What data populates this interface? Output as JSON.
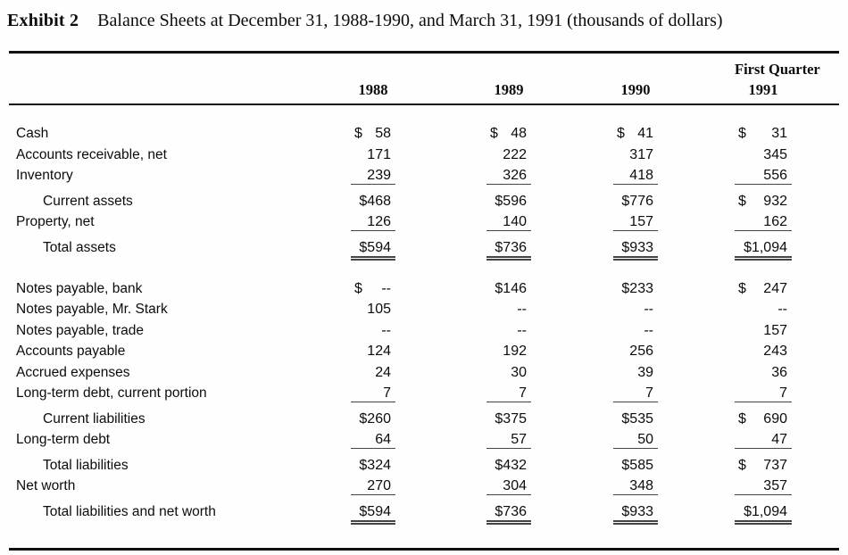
{
  "title": {
    "exhibit_label": "Exhibit 2",
    "description": "Balance Sheets at December 31, 1988-1990, and March 31, 1991 (thousands of dollars)"
  },
  "colors": {
    "text": "#0c0c0c",
    "rule": "#111111",
    "underline": "#454545",
    "background": "#fefefe"
  },
  "table": {
    "units": "thousands of dollars",
    "col_headers": {
      "top_label": "First Quarter",
      "years": [
        "1988",
        "1989",
        "1990",
        "1991"
      ]
    },
    "rows": [
      {
        "label": "Cash",
        "indent": false,
        "gap": false,
        "rule": "none",
        "cells": [
          [
            "$",
            "58"
          ],
          [
            "$",
            "48"
          ],
          [
            "$",
            "41"
          ],
          [
            "$",
            "31"
          ]
        ]
      },
      {
        "label": "Accounts receivable, net",
        "indent": false,
        "gap": false,
        "rule": "none",
        "cells": [
          [
            "",
            "171"
          ],
          [
            "",
            "222"
          ],
          [
            "",
            "317"
          ],
          [
            "",
            "345"
          ]
        ]
      },
      {
        "label": "Inventory",
        "indent": false,
        "gap": false,
        "rule": "single",
        "cells": [
          [
            "",
            "239"
          ],
          [
            "",
            "326"
          ],
          [
            "",
            "418"
          ],
          [
            "",
            "556"
          ]
        ]
      },
      {
        "label": "Current assets",
        "indent": true,
        "gap": true,
        "rule": "none",
        "cells": [
          [
            "",
            "$468"
          ],
          [
            "",
            "$596"
          ],
          [
            "",
            "$776"
          ],
          [
            "$",
            "932"
          ]
        ]
      },
      {
        "label": "Property, net",
        "indent": false,
        "gap": false,
        "rule": "single",
        "cells": [
          [
            "",
            "126"
          ],
          [
            "",
            "140"
          ],
          [
            "",
            "157"
          ],
          [
            "",
            "162"
          ]
        ]
      },
      {
        "label": "Total assets",
        "indent": true,
        "gap": true,
        "rule": "double",
        "cells": [
          [
            "",
            "$594"
          ],
          [
            "",
            "$736"
          ],
          [
            "",
            "$933"
          ],
          [
            "",
            "$1,094"
          ]
        ]
      },
      {
        "spacer": true
      },
      {
        "label": "Notes payable, bank",
        "indent": false,
        "gap": false,
        "rule": "none",
        "cells": [
          [
            "$",
            "--"
          ],
          [
            "",
            "$146"
          ],
          [
            "",
            "$233"
          ],
          [
            "$",
            "247"
          ]
        ]
      },
      {
        "label": "Notes payable, Mr. Stark",
        "indent": false,
        "gap": false,
        "rule": "none",
        "cells": [
          [
            "",
            "105"
          ],
          [
            "",
            "--"
          ],
          [
            "",
            "--"
          ],
          [
            "",
            "--"
          ]
        ]
      },
      {
        "label": "Notes payable, trade",
        "indent": false,
        "gap": false,
        "rule": "none",
        "cells": [
          [
            "",
            "--"
          ],
          [
            "",
            "--"
          ],
          [
            "",
            "--"
          ],
          [
            "",
            "157"
          ]
        ]
      },
      {
        "label": "Accounts payable",
        "indent": false,
        "gap": false,
        "rule": "none",
        "cells": [
          [
            "",
            "124"
          ],
          [
            "",
            "192"
          ],
          [
            "",
            "256"
          ],
          [
            "",
            "243"
          ]
        ]
      },
      {
        "label": "Accrued expenses",
        "indent": false,
        "gap": false,
        "rule": "none",
        "cells": [
          [
            "",
            "24"
          ],
          [
            "",
            "30"
          ],
          [
            "",
            "39"
          ],
          [
            "",
            "36"
          ]
        ]
      },
      {
        "label": "Long-term debt, current portion",
        "indent": false,
        "gap": false,
        "rule": "single",
        "cells": [
          [
            "",
            "7"
          ],
          [
            "",
            "7"
          ],
          [
            "",
            "7"
          ],
          [
            "",
            "7"
          ]
        ]
      },
      {
        "label": "Current liabilities",
        "indent": true,
        "gap": true,
        "rule": "none",
        "cells": [
          [
            "",
            "$260"
          ],
          [
            "",
            "$375"
          ],
          [
            "",
            "$535"
          ],
          [
            "$",
            "690"
          ]
        ]
      },
      {
        "label": "Long-term debt",
        "indent": false,
        "gap": false,
        "rule": "single",
        "cells": [
          [
            "",
            "64"
          ],
          [
            "",
            "57"
          ],
          [
            "",
            "50"
          ],
          [
            "",
            "47"
          ]
        ]
      },
      {
        "label": "Total liabilities",
        "indent": true,
        "gap": true,
        "rule": "none",
        "cells": [
          [
            "",
            "$324"
          ],
          [
            "",
            "$432"
          ],
          [
            "",
            "$585"
          ],
          [
            "$",
            "737"
          ]
        ]
      },
      {
        "label": "Net worth",
        "indent": false,
        "gap": false,
        "rule": "single",
        "cells": [
          [
            "",
            "270"
          ],
          [
            "",
            "304"
          ],
          [
            "",
            "348"
          ],
          [
            "",
            "357"
          ]
        ]
      },
      {
        "label": "Total liabilities and net worth",
        "indent": true,
        "gap": true,
        "rule": "double",
        "cells": [
          [
            "",
            "$594"
          ],
          [
            "",
            "$736"
          ],
          [
            "",
            "$933"
          ],
          [
            "",
            "$1,094"
          ]
        ]
      }
    ]
  }
}
